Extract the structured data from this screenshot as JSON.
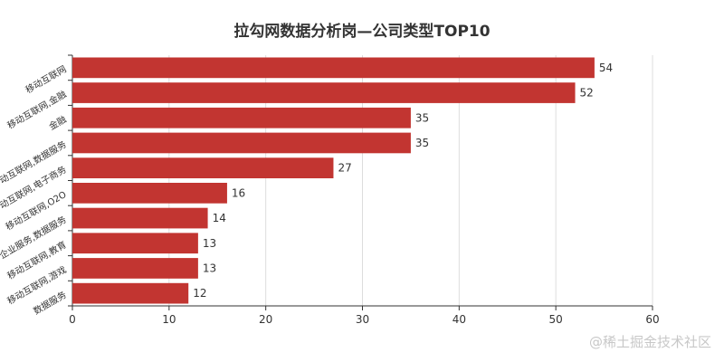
{
  "chart_data": {
    "type": "bar",
    "orientation": "horizontal",
    "title": "拉勾网数据分析岗—公司类型TOP10",
    "categories": [
      "移动互联网",
      "移动互联网,金融",
      "金融",
      "移动互联网,数据服务",
      "移动互联网,电子商务",
      "移动互联网,O2O",
      "企业服务,数据服务",
      "移动互联网,教育",
      "移动互联网,游戏",
      "数据服务"
    ],
    "values": [
      54,
      52,
      35,
      35,
      27,
      16,
      14,
      13,
      13,
      12
    ],
    "xlim": [
      0,
      60
    ],
    "xticks": [
      0,
      10,
      20,
      30,
      40,
      50,
      60
    ],
    "grid": true,
    "bar_color": "#c23531",
    "data_labels": true
  },
  "watermark": "@稀土掘金技术社区"
}
